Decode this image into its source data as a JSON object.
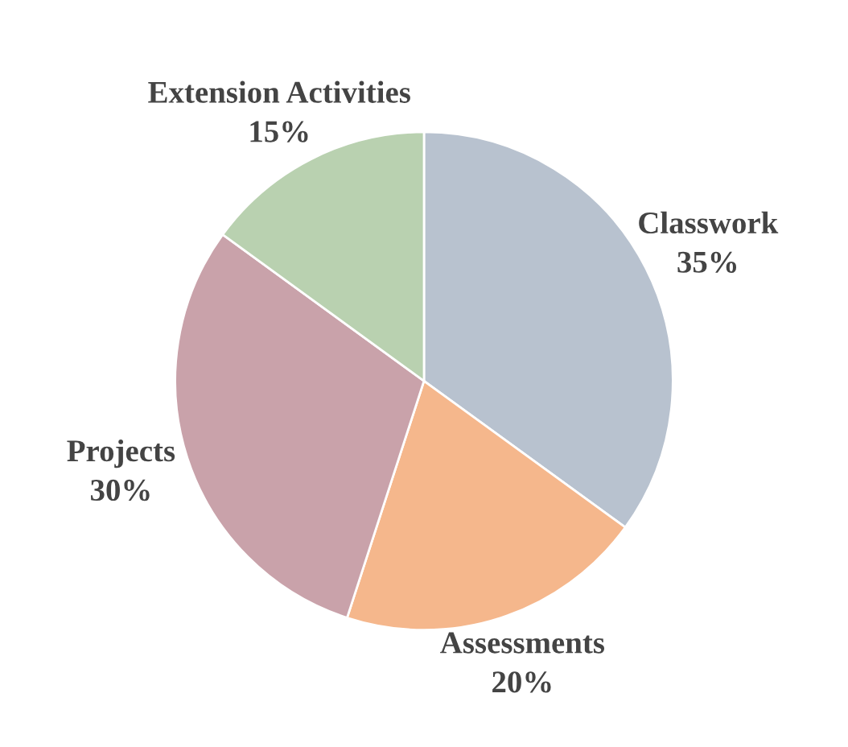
{
  "chart_data": {
    "type": "pie",
    "categories": [
      "Classwork",
      "Assessments",
      "Projects",
      "Extension Activities"
    ],
    "values": [
      35,
      20,
      30,
      15
    ],
    "value_labels": [
      "35%",
      "20%",
      "30%",
      "15%"
    ],
    "colors": [
      "#b8c2cf",
      "#f5b78c",
      "#c9a2aa",
      "#b9d1b0"
    ]
  }
}
